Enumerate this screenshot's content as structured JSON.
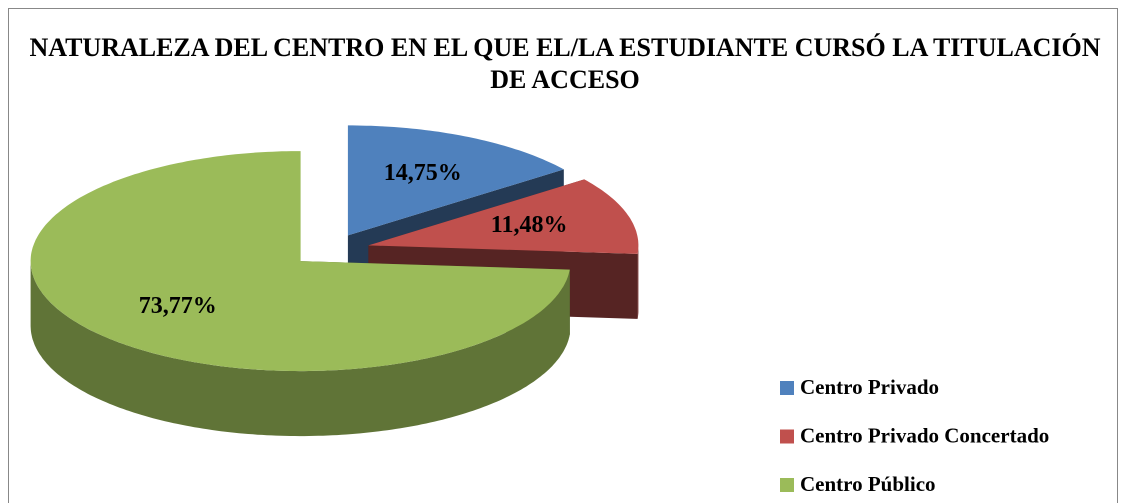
{
  "chart_data": {
    "type": "pie",
    "title": "NATURALEZA DEL CENTRO EN EL QUE EL/LA ESTUDIANTE CURSÓ LA TITULACIÓN DE ACCESO",
    "categories": [
      "Centro Privado",
      "Centro Privado Concertado",
      "Centro Público"
    ],
    "values": [
      14.75,
      11.48,
      73.77
    ],
    "value_labels": [
      "14,75%",
      "11,48%",
      "73,77%"
    ],
    "colors": [
      "#4f81bd",
      "#c0504d",
      "#9bbb59"
    ],
    "legend": "right"
  }
}
